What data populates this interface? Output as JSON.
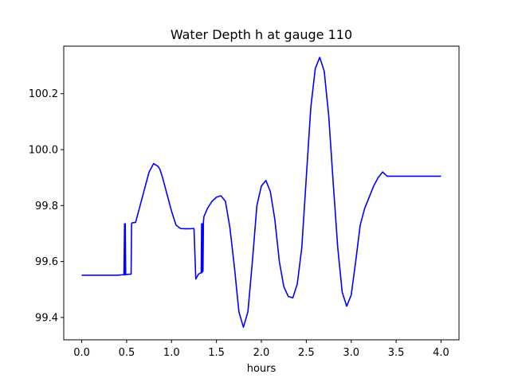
{
  "chart_data": {
    "type": "line",
    "title": "Water Depth h at gauge 110",
    "xlabel": "hours",
    "ylabel": "",
    "xlim": [
      -0.2,
      4.2
    ],
    "ylim": [
      99.32,
      100.37
    ],
    "xticks": [
      0.0,
      0.5,
      1.0,
      1.5,
      2.0,
      2.5,
      3.0,
      3.5,
      4.0
    ],
    "xtick_labels": [
      "0.0",
      "0.5",
      "1.0",
      "1.5",
      "2.0",
      "2.5",
      "3.0",
      "3.5",
      "4.0"
    ],
    "yticks": [
      99.4,
      99.6,
      99.8,
      100.0,
      100.2
    ],
    "ytick_labels": [
      "99.4",
      "99.6",
      "99.8",
      "100.0",
      "100.2"
    ],
    "grid": false,
    "series": [
      {
        "color": "#0000ff",
        "x": [
          0.0,
          0.1,
          0.2,
          0.3,
          0.4,
          0.47,
          0.477,
          0.48,
          0.485,
          0.49,
          0.5,
          0.55,
          0.555,
          0.56,
          0.6,
          0.65,
          0.7,
          0.75,
          0.8,
          0.85,
          0.87,
          0.9,
          0.95,
          1.0,
          1.05,
          1.1,
          1.15,
          1.2,
          1.25,
          1.27,
          1.275,
          1.3,
          1.33,
          1.335,
          1.34,
          1.345,
          1.35,
          1.355,
          1.36,
          1.4,
          1.45,
          1.5,
          1.55,
          1.6,
          1.65,
          1.7,
          1.75,
          1.8,
          1.85,
          1.9,
          1.95,
          2.0,
          2.05,
          2.1,
          2.15,
          2.2,
          2.25,
          2.3,
          2.35,
          2.4,
          2.45,
          2.5,
          2.55,
          2.6,
          2.65,
          2.7,
          2.75,
          2.8,
          2.85,
          2.9,
          2.95,
          3.0,
          3.05,
          3.1,
          3.15,
          3.2,
          3.25,
          3.3,
          3.35,
          3.4,
          3.45,
          3.5,
          3.55,
          3.6,
          3.65,
          3.7,
          3.75,
          3.8,
          3.85,
          3.9,
          3.95,
          4.0
        ],
        "y": [
          99.551,
          99.551,
          99.551,
          99.551,
          99.551,
          99.553,
          99.735,
          99.552,
          99.735,
          99.553,
          99.554,
          99.555,
          99.735,
          99.738,
          99.74,
          99.8,
          99.86,
          99.92,
          99.95,
          99.94,
          99.93,
          99.9,
          99.84,
          99.78,
          99.73,
          99.718,
          99.717,
          99.717,
          99.718,
          99.537,
          99.54,
          99.555,
          99.56,
          99.735,
          99.56,
          99.735,
          99.565,
          99.74,
          99.76,
          99.79,
          99.815,
          99.83,
          99.835,
          99.815,
          99.72,
          99.58,
          99.42,
          99.365,
          99.42,
          99.6,
          99.8,
          99.87,
          99.89,
          99.85,
          99.75,
          99.6,
          99.51,
          99.475,
          99.47,
          99.52,
          99.65,
          99.9,
          100.15,
          100.29,
          100.33,
          100.28,
          100.12,
          99.88,
          99.65,
          99.49,
          99.44,
          99.48,
          99.6,
          99.73,
          99.79,
          99.83,
          99.87,
          99.9,
          99.92,
          99.905,
          99.905,
          99.905,
          99.905,
          99.905,
          99.905,
          99.905,
          99.905,
          99.905,
          99.905,
          99.905,
          99.905,
          99.905
        ]
      }
    ]
  }
}
